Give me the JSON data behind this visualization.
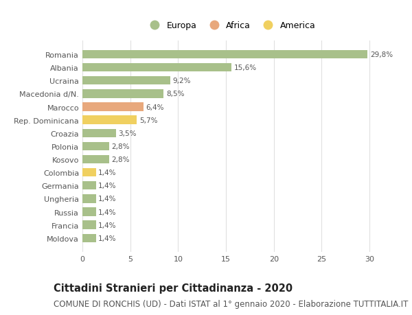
{
  "categories": [
    "Romania",
    "Albania",
    "Ucraina",
    "Macedonia d/N.",
    "Marocco",
    "Rep. Dominicana",
    "Croazia",
    "Polonia",
    "Kosovo",
    "Colombia",
    "Germania",
    "Ungheria",
    "Russia",
    "Francia",
    "Moldova"
  ],
  "values": [
    29.8,
    15.6,
    9.2,
    8.5,
    6.4,
    5.7,
    3.5,
    2.8,
    2.8,
    1.4,
    1.4,
    1.4,
    1.4,
    1.4,
    1.4
  ],
  "labels": [
    "29,8%",
    "15,6%",
    "9,2%",
    "8,5%",
    "6,4%",
    "5,7%",
    "3,5%",
    "2,8%",
    "2,8%",
    "1,4%",
    "1,4%",
    "1,4%",
    "1,4%",
    "1,4%",
    "1,4%"
  ],
  "continent": [
    "Europa",
    "Europa",
    "Europa",
    "Europa",
    "Africa",
    "America",
    "Europa",
    "Europa",
    "Europa",
    "America",
    "Europa",
    "Europa",
    "Europa",
    "Europa",
    "Europa"
  ],
  "colors": {
    "Europa": "#a8c08a",
    "Africa": "#e8a87c",
    "America": "#f0d060"
  },
  "legend_labels": [
    "Europa",
    "Africa",
    "America"
  ],
  "xlim": [
    0,
    31
  ],
  "xticks": [
    0,
    5,
    10,
    15,
    20,
    25,
    30
  ],
  "title": "Cittadini Stranieri per Cittadinanza - 2020",
  "subtitle": "COMUNE DI RONCHIS (UD) - Dati ISTAT al 1° gennaio 2020 - Elaborazione TUTTITALIA.IT",
  "title_fontsize": 10.5,
  "subtitle_fontsize": 8.5,
  "background_color": "#ffffff",
  "grid_color": "#e0e0e0"
}
